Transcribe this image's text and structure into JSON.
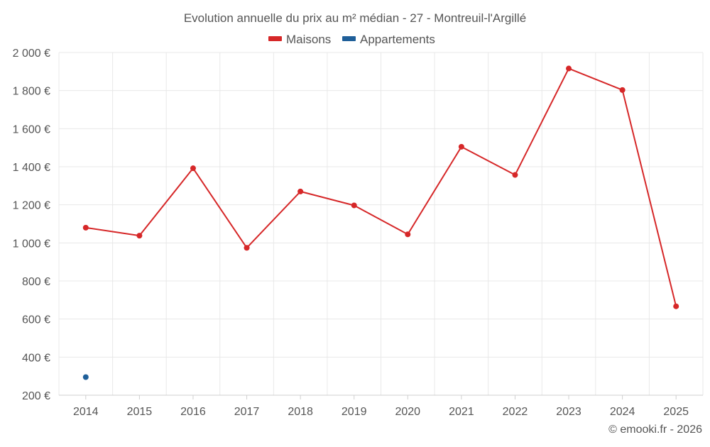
{
  "chart_data": {
    "type": "line",
    "title": "Evolution annuelle du prix au m² médian - 27 - Montreuil-l'Argillé",
    "categories": [
      "2014",
      "2015",
      "2016",
      "2017",
      "2018",
      "2019",
      "2020",
      "2021",
      "2022",
      "2023",
      "2024",
      "2025"
    ],
    "series": [
      {
        "name": "Maisons",
        "color": "#d62728",
        "values": [
          1080,
          1038,
          1392,
          974,
          1270,
          1197,
          1045,
          1505,
          1357,
          1916,
          1803,
          667
        ]
      },
      {
        "name": "Appartements",
        "color": "#1f5f99",
        "values": [
          295,
          null,
          null,
          null,
          null,
          null,
          null,
          null,
          null,
          null,
          null,
          null
        ]
      }
    ],
    "y_ticks": [
      "2 000 €",
      "1 800 €",
      "1 600 €",
      "1 400 €",
      "1 200 €",
      "1 000 €",
      "800 €",
      "600 €",
      "400 €",
      "200 €"
    ],
    "y_tick_values": [
      2000,
      1800,
      1600,
      1400,
      1200,
      1000,
      800,
      600,
      400,
      200
    ],
    "ylim": [
      200,
      2000
    ],
    "xlabel": "",
    "ylabel": "",
    "grid": true,
    "legend_position": "top-center"
  },
  "credit": "© emooki.fr - 2026"
}
